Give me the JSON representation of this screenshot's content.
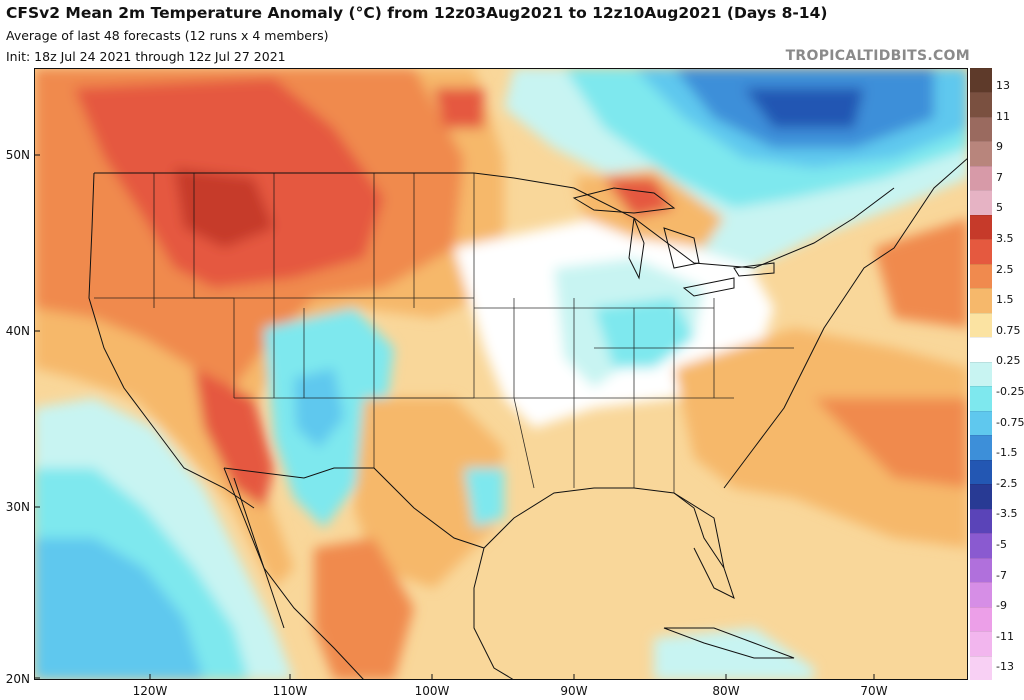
{
  "header": {
    "title": "CFSv2 Mean 2m Temperature Anomaly (°C) from 12z03Aug2021 to 12z10Aug2021 (Days 8-14)",
    "subtitle": "Average of last 48 forecasts (12 runs x 4 members)",
    "init": "Init: 18z Jul 24 2021 through 12z Jul 27 2021",
    "brand": "TROPICALTIDBITS.COM"
  },
  "axes": {
    "lat_labels": [
      "50N",
      "40N",
      "30N",
      "20N"
    ],
    "lon_labels": [
      "120W",
      "110W",
      "100W",
      "90W",
      "80W",
      "70W"
    ]
  },
  "colorbar": {
    "labels": [
      "13",
      "11",
      "9",
      "7",
      "5",
      "3.5",
      "2.5",
      "1.5",
      "0.75",
      "0.25",
      "-0.25",
      "-0.75",
      "-1.5",
      "-2.5",
      "-3.5",
      "-5",
      "-7",
      "-9",
      "-11",
      "-13"
    ],
    "colors": [
      "#5e3a2a",
      "#7a5040",
      "#9a6a5f",
      "#b8857c",
      "#d79aa8",
      "#e6b3c4",
      "#c63a2a",
      "#e5593f",
      "#f08a4e",
      "#f6b86b",
      "#fbe3a2",
      "#ffffff",
      "#c8f4f2",
      "#7ee8ee",
      "#5fc8ee",
      "#3d8fd9",
      "#2357b3",
      "#283a94",
      "#5a44b8",
      "#8a5ad0",
      "#b070dc",
      "#d68ee6",
      "#ec9fe8",
      "#f2b6ee",
      "#f8d0f4"
    ]
  },
  "map": {
    "ocean_color": "#f9d79a",
    "anomaly_colors": {
      "warm_strong": "#c63a2a",
      "warm": "#e5593f",
      "warm_mild": "#f08a4e",
      "warm_light": "#f6b86b",
      "neutral_warm": "#fbe3a2",
      "neutral": "#ffffff",
      "cool_light": "#c8f4f2",
      "cool": "#7ee8ee",
      "cool_mid": "#5fc8ee",
      "cold": "#3d8fd9",
      "cold_strong": "#2357b3"
    }
  }
}
